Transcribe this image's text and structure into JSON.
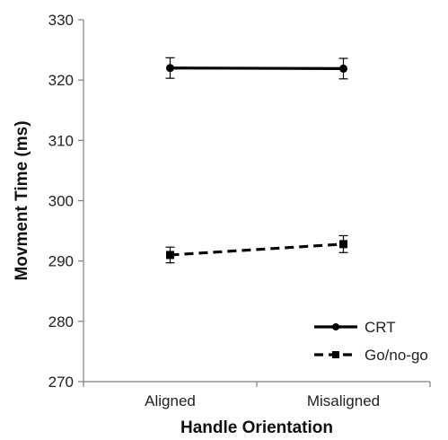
{
  "chart_data": {
    "type": "line",
    "categories": [
      "Aligned",
      "Misaligned"
    ],
    "series": [
      {
        "name": "CRT",
        "values": [
          322.0,
          321.9
        ],
        "error": [
          1.7,
          1.7
        ],
        "line_style": "solid",
        "marker": "circle",
        "color": "#000000"
      },
      {
        "name": "Go/no-go",
        "values": [
          291.0,
          292.8
        ],
        "error": [
          1.3,
          1.4
        ],
        "line_style": "dashed",
        "marker": "square",
        "color": "#000000"
      }
    ],
    "title": "",
    "xlabel": "Handle Orientation",
    "ylabel": "Movment Time (ms)",
    "ylim": [
      270,
      330
    ],
    "yticks": [
      270,
      280,
      290,
      300,
      310,
      320,
      330
    ],
    "grid": false,
    "legend_position": "bottom-right"
  }
}
